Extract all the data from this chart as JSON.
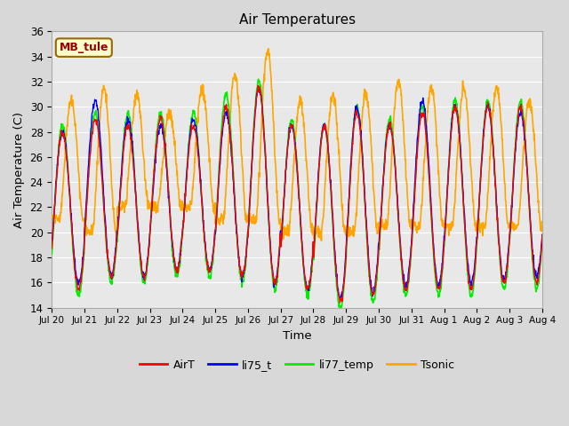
{
  "title": "Air Temperatures",
  "xlabel": "Time",
  "ylabel": "Air Temperature (C)",
  "ylim": [
    14,
    36
  ],
  "annotation_text": "MB_tule",
  "annotation_bbox_facecolor": "#ffffcc",
  "annotation_bbox_edgecolor": "#996600",
  "annotation_text_color": "#990000",
  "series": {
    "AirT": {
      "color": "#ff0000",
      "lw": 1.0
    },
    "li75_t": {
      "color": "#0000ff",
      "lw": 1.0
    },
    "li77_temp": {
      "color": "#00ee00",
      "lw": 1.2
    },
    "Tsonic": {
      "color": "#ffa500",
      "lw": 1.2
    }
  },
  "figure_bg": "#d8d8d8",
  "plot_bg": "#e8e8e8",
  "grid_color": "#ffffff",
  "tick_labels": [
    "Jul 20",
    "Jul 21",
    "Jul 22",
    "Jul 23",
    "Jul 24",
    "Jul 25",
    "Jul 26",
    "Jul 27",
    "Jul 28",
    "Jul 29",
    "Jul 30",
    "Jul 31",
    "Aug 1",
    "Aug 2",
    "Aug 3",
    "Aug 4"
  ],
  "yticks": [
    14,
    16,
    18,
    20,
    22,
    24,
    26,
    28,
    30,
    32,
    34,
    36
  ],
  "n_days": 15,
  "pts_per_day": 96
}
